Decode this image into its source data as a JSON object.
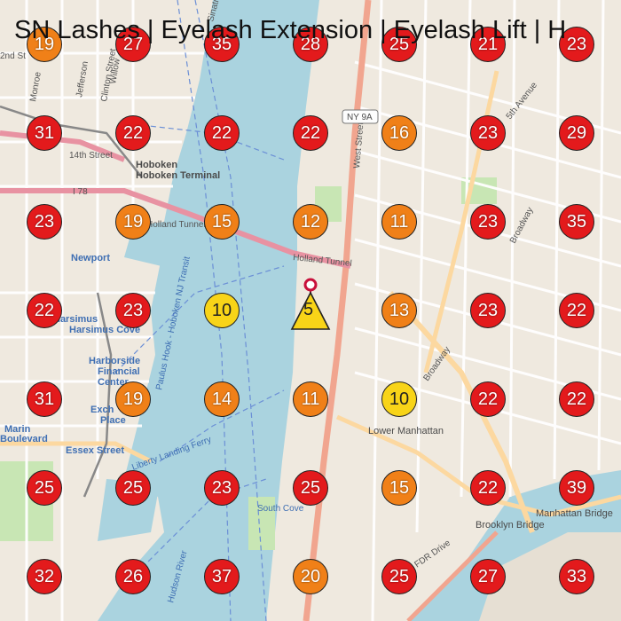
{
  "title": "SN Lashes | Eyelash Extension | Eyelash Lift | H",
  "colors": {
    "red": "#e31a1c",
    "orange": "#f08018",
    "yellow": "#f8d418",
    "water": "#aad3df",
    "land": "#efe9df"
  },
  "center": {
    "rank": "5",
    "pin_icon": "location-pin-icon",
    "shape": "triangle"
  },
  "map_labels": {
    "hoboken": "Hoboken",
    "hoboken_terminal": "Hoboken Terminal",
    "newport": "Newport",
    "harsimus": "Harsimus",
    "harsimus_cove": "Harsimus Cove",
    "harborside": "Harborside",
    "financial": "Financial",
    "center": "Center",
    "exchange": "Exch",
    "place": "Place",
    "marin": "Marin",
    "boulevard": "Boulevard",
    "essex_street": "Essex Street",
    "lower_manhattan": "Lower Manhattan",
    "brooklyn_bridge": "Brooklyn Bridge",
    "manhattan_bridge": "Manhattan Bridge",
    "holland_tunnel_1": "Holland Tunnel",
    "holland_tunnel_2": "Holland Tunnel",
    "west_street": "West Street",
    "broadway_1": "Broadway",
    "broadway_2": "Broadway",
    "hudson_river": "Hudson River",
    "fifth_avenue": "5th Avenue",
    "ny9a": "NY 9A",
    "i78": "I 78",
    "monroe": "Monroe",
    "jefferson": "Jefferson",
    "clinton_street": "Clinton Street",
    "willow": "Willow",
    "fourteenth": "14th Street",
    "second_street": "2nd St",
    "sinatra": "Sinatra",
    "south_cove": "South Cove",
    "paulus_hook": "Paulus Hook - Hoboken NJ Transit",
    "landing_ferry": "Liberty Landing Ferry",
    "fdr": "FDR Drive"
  },
  "markers": [
    {
      "rank": "19",
      "level": "orange"
    },
    {
      "rank": "27",
      "level": "red"
    },
    {
      "rank": "35",
      "level": "red"
    },
    {
      "rank": "28",
      "level": "red"
    },
    {
      "rank": "25",
      "level": "red"
    },
    {
      "rank": "21",
      "level": "red"
    },
    {
      "rank": "23",
      "level": "red"
    },
    {
      "rank": "31",
      "level": "red"
    },
    {
      "rank": "22",
      "level": "red"
    },
    {
      "rank": "22",
      "level": "red"
    },
    {
      "rank": "22",
      "level": "red"
    },
    {
      "rank": "16",
      "level": "orange"
    },
    {
      "rank": "23",
      "level": "red"
    },
    {
      "rank": "29",
      "level": "red"
    },
    {
      "rank": "23",
      "level": "red"
    },
    {
      "rank": "19",
      "level": "orange"
    },
    {
      "rank": "15",
      "level": "orange"
    },
    {
      "rank": "12",
      "level": "orange"
    },
    {
      "rank": "11",
      "level": "orange"
    },
    {
      "rank": "23",
      "level": "red"
    },
    {
      "rank": "35",
      "level": "red"
    },
    {
      "rank": "22",
      "level": "red"
    },
    {
      "rank": "23",
      "level": "red"
    },
    {
      "rank": "10",
      "level": "yellow"
    },
    {
      "rank": "",
      "level": "center"
    },
    {
      "rank": "13",
      "level": "orange"
    },
    {
      "rank": "23",
      "level": "red"
    },
    {
      "rank": "22",
      "level": "red"
    },
    {
      "rank": "31",
      "level": "red"
    },
    {
      "rank": "19",
      "level": "orange"
    },
    {
      "rank": "14",
      "level": "orange"
    },
    {
      "rank": "11",
      "level": "orange"
    },
    {
      "rank": "10",
      "level": "yellow"
    },
    {
      "rank": "22",
      "level": "red"
    },
    {
      "rank": "22",
      "level": "red"
    },
    {
      "rank": "25",
      "level": "red"
    },
    {
      "rank": "25",
      "level": "red"
    },
    {
      "rank": "23",
      "level": "red"
    },
    {
      "rank": "25",
      "level": "red"
    },
    {
      "rank": "15",
      "level": "orange"
    },
    {
      "rank": "22",
      "level": "red"
    },
    {
      "rank": "39",
      "level": "red"
    },
    {
      "rank": "32",
      "level": "red"
    },
    {
      "rank": "26",
      "level": "red"
    },
    {
      "rank": "37",
      "level": "red"
    },
    {
      "rank": "20",
      "level": "orange"
    },
    {
      "rank": "25",
      "level": "red"
    },
    {
      "rank": "27",
      "level": "red"
    },
    {
      "rank": "33",
      "level": "red"
    }
  ]
}
